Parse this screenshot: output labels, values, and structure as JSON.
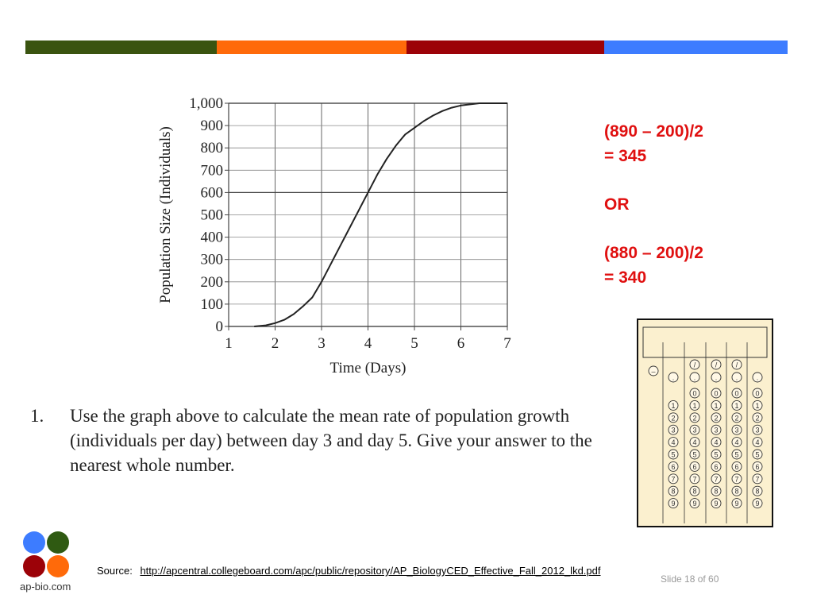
{
  "top_bar_colors": [
    "#3a5410",
    "#ff6a0a",
    "#9c0208",
    "#3d7cff"
  ],
  "chart_data": {
    "type": "line",
    "title": "",
    "xlabel": "Time (Days)",
    "ylabel": "Population Size (Individuals)",
    "xlim": [
      1,
      7
    ],
    "ylim": [
      0,
      1000
    ],
    "x_ticks": [
      "1",
      "2",
      "3",
      "4",
      "5",
      "6",
      "7"
    ],
    "y_ticks": [
      "0",
      "100",
      "200",
      "300",
      "400",
      "500",
      "600",
      "700",
      "800",
      "900",
      "1,000"
    ],
    "grid": true,
    "series": [
      {
        "x": [
          1.55,
          1.8,
          2.0,
          2.2,
          2.4,
          2.6,
          2.8,
          3.0,
          3.2,
          3.4,
          3.6,
          3.8,
          4.0,
          4.2,
          4.4,
          4.6,
          4.8,
          5.0,
          5.2,
          5.4,
          5.6,
          5.8,
          6.0,
          6.2,
          6.4,
          6.6,
          6.8,
          7.0
        ],
        "y": [
          0,
          5,
          15,
          30,
          55,
          90,
          130,
          200,
          280,
          360,
          440,
          520,
          600,
          680,
          750,
          810,
          860,
          890,
          920,
          945,
          965,
          980,
          990,
          995,
          1000,
          1000,
          1000,
          1000
        ],
        "color": "#222222"
      }
    ]
  },
  "question": {
    "number": "1.",
    "text": "Use the graph above to calculate the mean rate of population growth (individuals per day) between day 3 and day 5. Give your answer to the nearest whole number."
  },
  "answers": {
    "line1": "(890 – 200)/2",
    "line2": "= 345",
    "or": "OR",
    "line3": "(880 – 200)/2",
    "line4": "= 340"
  },
  "grid_form": {
    "columns": 5,
    "digits": [
      "0",
      "1",
      "2",
      "3",
      "4",
      "5",
      "6",
      "7",
      "8",
      "9"
    ],
    "minus_symbol": "–",
    "slash_symbol": "/",
    "dot_symbol": "."
  },
  "source": {
    "label": "Source:",
    "url_text": "http://apcentral.collegeboard.com/apc/public/repository/AP_BiologyCED_Effective_Fall_2012_lkd.pdf"
  },
  "slide_number": "Slide 18 of 60",
  "logo": {
    "text": "ap-bio.com",
    "colors": [
      "#3d7cff",
      "#2f5a12",
      "#9c0208",
      "#ff6a0a"
    ]
  }
}
